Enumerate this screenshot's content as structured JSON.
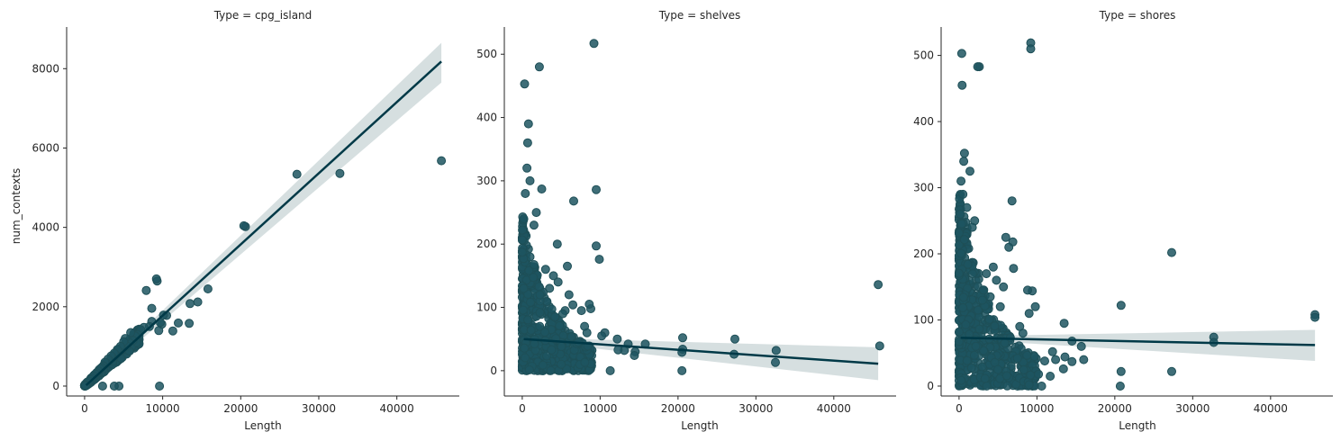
{
  "colors": {
    "points": "#1d5560",
    "line": "#003947",
    "band": "#c8d4d6"
  },
  "chart_data": [
    {
      "type": "scatter",
      "title": "Type = cpg_island",
      "xlabel": "Length",
      "ylabel": "num_contexts",
      "xlim": [
        -2300,
        48000
      ],
      "ylim": [
        -250,
        9050
      ],
      "xticks": [
        0,
        10000,
        20000,
        30000,
        40000
      ],
      "xtick_labels": [
        "0",
        "10000",
        "20000",
        "30000",
        "40000"
      ],
      "yticks": [
        0,
        2000,
        4000,
        6000,
        8000
      ],
      "ytick_labels": [
        "0",
        "2000",
        "4000",
        "6000",
        "8000"
      ],
      "regression": {
        "x": [
          200,
          45700
        ],
        "y": [
          20,
          8180
        ],
        "band_lo_end": 7650,
        "band_hi_end": 8650
      },
      "points": [
        [
          45700,
          5680
        ],
        [
          32700,
          5360
        ],
        [
          27200,
          5340
        ],
        [
          20600,
          4020
        ],
        [
          20400,
          4040
        ],
        [
          15800,
          2450
        ],
        [
          14500,
          2120
        ],
        [
          13500,
          2080
        ],
        [
          13400,
          1580
        ],
        [
          12000,
          1590
        ],
        [
          11300,
          1390
        ],
        [
          10500,
          1780
        ],
        [
          10100,
          1790
        ],
        [
          9900,
          1560
        ],
        [
          9700,
          1600
        ],
        [
          9500,
          1400
        ],
        [
          9600,
          0
        ],
        [
          9300,
          2650
        ],
        [
          9200,
          2700
        ],
        [
          8600,
          1960
        ],
        [
          8600,
          1630
        ],
        [
          8300,
          1500
        ],
        [
          7900,
          2410
        ],
        [
          7600,
          1480
        ],
        [
          7200,
          1420
        ],
        [
          6800,
          1300
        ],
        [
          6500,
          1260
        ],
        [
          6200,
          1150
        ],
        [
          5900,
          1350
        ],
        [
          5700,
          1100
        ],
        [
          5400,
          1010
        ],
        [
          5200,
          1200
        ],
        [
          5000,
          1120
        ],
        [
          4800,
          930
        ],
        [
          4600,
          1000
        ],
        [
          4400,
          0
        ],
        [
          4400,
          870
        ],
        [
          4200,
          920
        ],
        [
          4000,
          790
        ],
        [
          3800,
          0
        ],
        [
          3800,
          830
        ],
        [
          3600,
          710
        ],
        [
          3400,
          760
        ],
        [
          3200,
          640
        ],
        [
          3000,
          680
        ],
        [
          2800,
          580
        ],
        [
          2600,
          600
        ],
        [
          2400,
          510
        ],
        [
          2300,
          0
        ],
        [
          2200,
          470
        ],
        [
          2000,
          440
        ],
        [
          1800,
          380
        ],
        [
          1600,
          330
        ],
        [
          1400,
          300
        ],
        [
          1200,
          250
        ],
        [
          1000,
          200
        ],
        [
          800,
          160
        ],
        [
          600,
          120
        ],
        [
          400,
          80
        ],
        [
          200,
          30
        ],
        [
          100,
          10
        ]
      ]
    },
    {
      "type": "scatter",
      "title": "Type = shelves",
      "xlabel": "Length",
      "ylabel": "",
      "xlim": [
        -2300,
        48000
      ],
      "ylim": [
        -40,
        543
      ],
      "xticks": [
        0,
        10000,
        20000,
        30000,
        40000
      ],
      "xtick_labels": [
        "0",
        "10000",
        "20000",
        "30000",
        "40000"
      ],
      "yticks": [
        0,
        100,
        200,
        300,
        400,
        500
      ],
      "ytick_labels": [
        "0",
        "100",
        "200",
        "300",
        "400",
        "500"
      ],
      "regression": {
        "x": [
          200,
          45700
        ],
        "y": [
          50,
          11
        ],
        "band_lo_end": -15,
        "band_hi_end": 37
      },
      "points": [
        [
          45700,
          136
        ],
        [
          45900,
          39
        ],
        [
          32600,
          32
        ],
        [
          32500,
          13
        ],
        [
          27300,
          50
        ],
        [
          27200,
          26
        ],
        [
          20600,
          52
        ],
        [
          20600,
          34
        ],
        [
          20500,
          29
        ],
        [
          20500,
          0
        ],
        [
          15800,
          42
        ],
        [
          14500,
          30
        ],
        [
          14400,
          24
        ],
        [
          13600,
          42
        ],
        [
          13100,
          32
        ],
        [
          12200,
          50
        ],
        [
          12300,
          33
        ],
        [
          11300,
          0
        ],
        [
          10600,
          60
        ],
        [
          10200,
          55
        ],
        [
          9900,
          176
        ],
        [
          9500,
          197
        ],
        [
          9500,
          286
        ],
        [
          9200,
          517
        ],
        [
          8800,
          98
        ],
        [
          8600,
          105
        ],
        [
          8300,
          60
        ],
        [
          8000,
          70
        ],
        [
          7600,
          95
        ],
        [
          7200,
          45
        ],
        [
          6600,
          268
        ],
        [
          6500,
          104
        ],
        [
          6000,
          120
        ],
        [
          5800,
          165
        ],
        [
          5500,
          95
        ],
        [
          5200,
          90
        ],
        [
          5000,
          10
        ],
        [
          4600,
          140
        ],
        [
          4500,
          200
        ],
        [
          4200,
          85
        ],
        [
          4000,
          150
        ],
        [
          3500,
          130
        ],
        [
          3000,
          160
        ],
        [
          2500,
          287
        ],
        [
          2200,
          480
        ],
        [
          1800,
          250
        ],
        [
          1500,
          230
        ],
        [
          1000,
          300
        ],
        [
          800,
          390
        ],
        [
          700,
          360
        ],
        [
          600,
          320
        ],
        [
          400,
          280
        ],
        [
          300,
          453
        ],
        [
          200,
          240
        ]
      ]
    },
    {
      "type": "scatter",
      "title": "Type = shores",
      "xlabel": "Length",
      "ylabel": "",
      "xlim": [
        -2300,
        48000
      ],
      "ylim": [
        -15,
        543
      ],
      "xticks": [
        0,
        10000,
        20000,
        30000,
        40000
      ],
      "xtick_labels": [
        "0",
        "10000",
        "20000",
        "30000",
        "40000"
      ],
      "yticks": [
        0,
        100,
        200,
        300,
        400,
        500
      ],
      "ytick_labels": [
        "0",
        "100",
        "200",
        "300",
        "400",
        "500"
      ],
      "regression": {
        "x": [
          200,
          45700
        ],
        "y": [
          73,
          62
        ],
        "band_lo_end": 38,
        "band_hi_end": 85
      },
      "points": [
        [
          45700,
          108
        ],
        [
          45700,
          104
        ],
        [
          32700,
          74
        ],
        [
          32700,
          66
        ],
        [
          27300,
          202
        ],
        [
          27300,
          22
        ],
        [
          20800,
          122
        ],
        [
          20800,
          22
        ],
        [
          20700,
          0
        ],
        [
          16000,
          40
        ],
        [
          15700,
          60
        ],
        [
          14500,
          37
        ],
        [
          14500,
          68
        ],
        [
          13500,
          95
        ],
        [
          13600,
          44
        ],
        [
          13400,
          26
        ],
        [
          12400,
          40
        ],
        [
          12000,
          52
        ],
        [
          11700,
          15
        ],
        [
          11000,
          38
        ],
        [
          10600,
          0
        ],
        [
          10200,
          18
        ],
        [
          9800,
          120
        ],
        [
          9400,
          144
        ],
        [
          9200,
          519
        ],
        [
          9200,
          510
        ],
        [
          9000,
          110
        ],
        [
          8800,
          145
        ],
        [
          8200,
          80
        ],
        [
          7800,
          90
        ],
        [
          7500,
          42
        ],
        [
          7000,
          178
        ],
        [
          6900,
          218
        ],
        [
          6800,
          280
        ],
        [
          6400,
          210
        ],
        [
          6000,
          225
        ],
        [
          5700,
          150
        ],
        [
          5300,
          120
        ],
        [
          5000,
          25
        ],
        [
          4800,
          160
        ],
        [
          4400,
          180
        ],
        [
          4000,
          135
        ],
        [
          3500,
          170
        ],
        [
          3000,
          130
        ],
        [
          2600,
          483
        ],
        [
          2400,
          483
        ],
        [
          2000,
          250
        ],
        [
          1700,
          240
        ],
        [
          1400,
          325
        ],
        [
          1000,
          270
        ],
        [
          700,
          352
        ],
        [
          600,
          340
        ],
        [
          500,
          290
        ],
        [
          400,
          455
        ],
        [
          350,
          503
        ],
        [
          250,
          310
        ],
        [
          150,
          260
        ]
      ]
    }
  ]
}
